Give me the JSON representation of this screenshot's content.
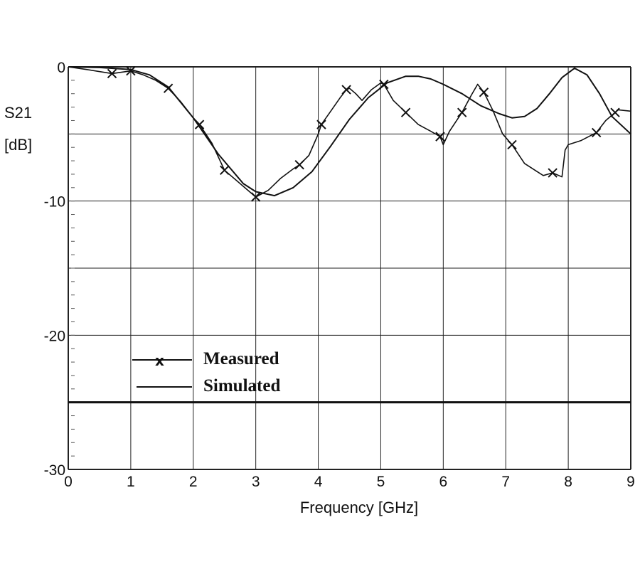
{
  "chart_data": {
    "type": "line",
    "ylabel_line1": "S21",
    "ylabel_line2": "[dB]",
    "xlabel": "Frequency [GHz]",
    "xlim": [
      0,
      9
    ],
    "ylim": [
      -30,
      0
    ],
    "x_ticks": [
      "0",
      "1",
      "2",
      "3",
      "4",
      "5",
      "6",
      "7",
      "8",
      "9"
    ],
    "y_ticks": [
      {
        "value": 0,
        "label": "0"
      },
      {
        "value": -10,
        "label": "-10"
      },
      {
        "value": -20,
        "label": "-20"
      },
      {
        "value": -30,
        "label": "-30"
      }
    ],
    "grid": true,
    "legend_position": "lower-left",
    "series": [
      {
        "name": "Measured",
        "marker": "x",
        "color": "#111111",
        "x": [
          0,
          0.3,
          0.7,
          1.0,
          1.2,
          1.4,
          1.6,
          1.8,
          2.0,
          2.1,
          2.3,
          2.5,
          2.7,
          2.9,
          3.0,
          3.2,
          3.4,
          3.6,
          3.7,
          3.85,
          4.0,
          4.05,
          4.2,
          4.35,
          4.45,
          4.5,
          4.6,
          4.7,
          4.85,
          5.0,
          5.05,
          5.2,
          5.4,
          5.6,
          5.8,
          5.95,
          6.0,
          6.1,
          6.3,
          6.45,
          6.55,
          6.65,
          6.8,
          6.95,
          7.1,
          7.3,
          7.5,
          7.6,
          7.75,
          7.9,
          7.95,
          8.0,
          8.2,
          8.45,
          8.6,
          8.8,
          9.0
        ],
        "y": [
          0,
          -0.2,
          -0.5,
          -0.3,
          -0.6,
          -1.0,
          -1.6,
          -2.6,
          -3.8,
          -4.3,
          -5.7,
          -7.7,
          -8.5,
          -9.3,
          -9.7,
          -9.2,
          -8.3,
          -7.6,
          -7.3,
          -6.6,
          -5.0,
          -4.3,
          -3.3,
          -2.3,
          -1.7,
          -1.6,
          -2.0,
          -2.5,
          -1.7,
          -1.2,
          -1.3,
          -2.5,
          -3.4,
          -4.3,
          -4.8,
          -5.2,
          -5.8,
          -4.8,
          -3.4,
          -2.1,
          -1.3,
          -1.9,
          -3.3,
          -5.0,
          -5.8,
          -7.2,
          -7.8,
          -8.1,
          -7.9,
          -8.2,
          -6.2,
          -5.8,
          -5.5,
          -4.9,
          -4.0,
          -3.2,
          -3.3
        ]
      },
      {
        "name": "Simulated",
        "color": "#111111",
        "x": [
          0,
          0.5,
          1.0,
          1.3,
          1.6,
          2.0,
          2.4,
          2.8,
          3.0,
          3.3,
          3.6,
          3.9,
          4.2,
          4.5,
          4.8,
          5.1,
          5.4,
          5.6,
          5.8,
          6.0,
          6.3,
          6.6,
          6.9,
          7.1,
          7.3,
          7.5,
          7.7,
          7.9,
          8.1,
          8.3,
          8.5,
          8.7,
          9.0
        ],
        "y": [
          0,
          -0.05,
          -0.2,
          -0.6,
          -1.5,
          -3.8,
          -6.5,
          -8.7,
          -9.3,
          -9.6,
          -9.0,
          -7.8,
          -5.9,
          -3.9,
          -2.3,
          -1.2,
          -0.7,
          -0.7,
          -0.9,
          -1.3,
          -2.0,
          -2.9,
          -3.5,
          -3.8,
          -3.7,
          -3.1,
          -2.0,
          -0.8,
          -0.1,
          -0.6,
          -2.0,
          -3.7,
          -5.0
        ]
      }
    ],
    "markers": {
      "series": "Measured",
      "x": [
        0.7,
        1.0,
        1.6,
        2.1,
        2.5,
        3.0,
        3.7,
        4.05,
        4.45,
        5.05,
        5.4,
        5.95,
        6.3,
        6.65,
        7.1,
        7.75,
        8.45,
        8.75
      ]
    }
  }
}
